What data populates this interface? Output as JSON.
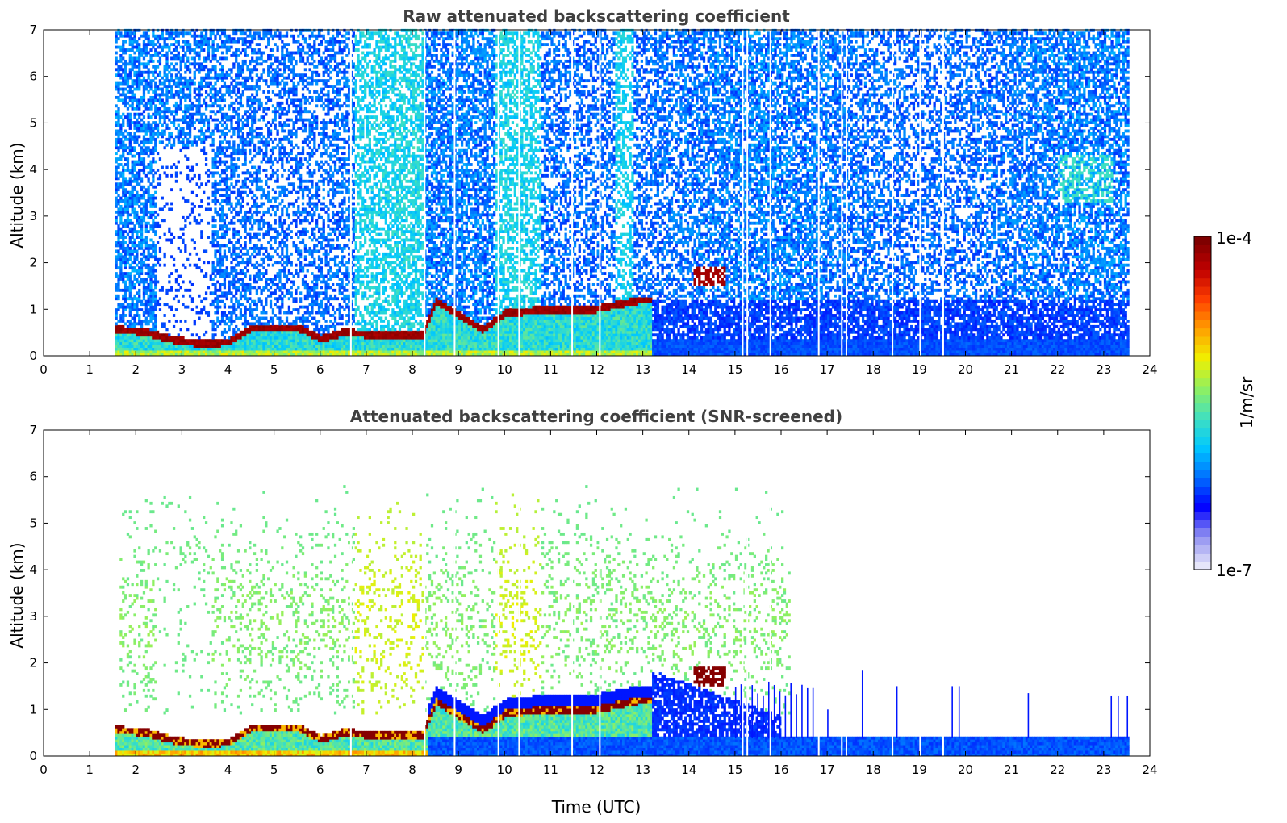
{
  "chart_data": [
    {
      "type": "heatmap",
      "title": "Raw attenuated backscattering coefficient",
      "xlabel": "",
      "ylabel": "Altitude (km)",
      "xlim": [
        0,
        24
      ],
      "ylim": [
        0,
        7
      ],
      "x_ticks": [
        "0",
        "1",
        "2",
        "3",
        "4",
        "5",
        "6",
        "7",
        "8",
        "9",
        "10",
        "11",
        "12",
        "13",
        "14",
        "15",
        "16",
        "17",
        "18",
        "19",
        "20",
        "21",
        "22",
        "23",
        "24"
      ],
      "y_ticks": [
        "0",
        "1",
        "2",
        "3",
        "4",
        "5",
        "6",
        "7"
      ],
      "data_coverage_utc": [
        1.55,
        23.55
      ],
      "boundary_layer_top_km": [
        [
          1.6,
          0.55
        ],
        [
          2.2,
          0.5
        ],
        [
          2.7,
          0.35
        ],
        [
          3.0,
          0.3
        ],
        [
          3.5,
          0.25
        ],
        [
          4.0,
          0.3
        ],
        [
          4.5,
          0.6
        ],
        [
          5.5,
          0.6
        ],
        [
          6.0,
          0.35
        ],
        [
          6.5,
          0.5
        ],
        [
          7.0,
          0.45
        ],
        [
          7.5,
          0.45
        ],
        [
          8.2,
          0.45
        ],
        [
          8.5,
          1.15
        ],
        [
          9.5,
          0.55
        ],
        [
          10.0,
          0.9
        ],
        [
          11.0,
          1.0
        ],
        [
          12.0,
          1.0
        ],
        [
          13.0,
          1.2
        ]
      ],
      "elevated_layer": {
        "time_utc": [
          14.1,
          14.8
        ],
        "altitude_km": [
          1.5,
          1.9
        ]
      },
      "data_gaps_utc": [
        6.65,
        8.25,
        8.9,
        9.85,
        10.3,
        11.45,
        12.05,
        15.15,
        15.25,
        15.75,
        16.8,
        17.3,
        17.4,
        18.4,
        19.0,
        19.5
      ]
    },
    {
      "type": "heatmap",
      "title": "Attenuated backscattering coefficient (SNR-screened)",
      "xlabel": "Time (UTC)",
      "ylabel": "Altitude (km)",
      "xlim": [
        0,
        24
      ],
      "ylim": [
        0,
        7
      ],
      "x_ticks": [
        "0",
        "1",
        "2",
        "3",
        "4",
        "5",
        "6",
        "7",
        "8",
        "9",
        "10",
        "11",
        "12",
        "13",
        "14",
        "15",
        "16",
        "17",
        "18",
        "19",
        "20",
        "21",
        "22",
        "23",
        "24"
      ],
      "y_ticks": [
        "0",
        "1",
        "2",
        "3",
        "4",
        "5",
        "6",
        "7"
      ],
      "data_coverage_utc": [
        1.55,
        23.55
      ],
      "screened_low_layer_km": 0.38
    }
  ],
  "colorbar": {
    "label": "1/m/sr",
    "max_label": "1e-4",
    "min_label": "1e-7",
    "scale": "log",
    "colormap": [
      "#e6e6fa",
      "#9090f0",
      "#0000ff",
      "#0070ff",
      "#00c8ff",
      "#40e0c0",
      "#90f060",
      "#f0f000",
      "#ffa000",
      "#ff4000",
      "#c00000",
      "#7f0000"
    ]
  },
  "colors": {
    "title": "#404040",
    "axis": "#000000",
    "background": "#ffffff"
  }
}
